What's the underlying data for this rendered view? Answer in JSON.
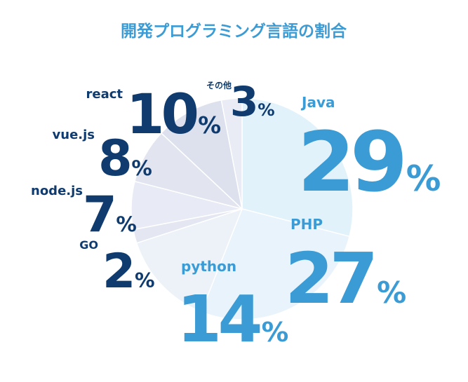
{
  "chart_data": {
    "type": "pie",
    "title": "開発プログラミング言語の割合",
    "categories": [
      "Java",
      "PHP",
      "python",
      "GO",
      "node.js",
      "vue.js",
      "react",
      "その他"
    ],
    "values": [
      29,
      27,
      14,
      2,
      7,
      8,
      10,
      3
    ],
    "value_labels": [
      "29%",
      "27%",
      "14%",
      "2%",
      "7%",
      "8%",
      "10%",
      "3%"
    ],
    "colors": [
      "#e2f2fb",
      "#e9f3fb",
      "#edf2f9",
      "#e4e7f1",
      "#e8ebf5",
      "#e2e5f0",
      "#dde1ee",
      "#e9ecf5"
    ],
    "label_colors": [
      "#3b9bd5",
      "#3b9bd5",
      "#3b9bd5",
      "#0f3b6f",
      "#0f3b6f",
      "#0f3b6f",
      "#0f3b6f",
      "#0f3b6f"
    ]
  }
}
